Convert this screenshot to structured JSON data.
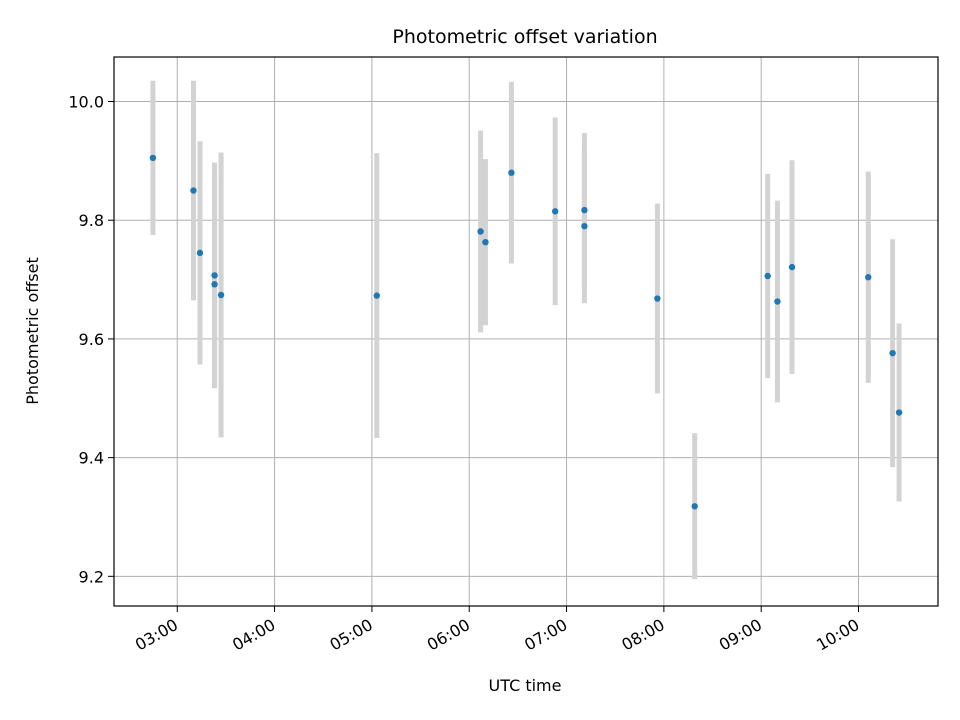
{
  "chart_data": {
    "type": "scatter",
    "title": "Photometric offset variation",
    "xlabel": "UTC time",
    "ylabel": "Photometric offset",
    "grid": true,
    "x_axis": {
      "type": "time",
      "range": [
        "02:21",
        "10:49"
      ],
      "ticks": [
        "03:00",
        "04:00",
        "05:00",
        "06:00",
        "07:00",
        "08:00",
        "09:00",
        "10:00"
      ]
    },
    "y_axis": {
      "range": [
        9.15,
        10.075
      ],
      "ticks": [
        9.2,
        9.4,
        9.6,
        9.8,
        10.0
      ],
      "tick_labels": [
        "9.2",
        "9.4",
        "9.6",
        "9.8",
        "10.0"
      ]
    },
    "colors": {
      "points": "#1f77b4",
      "error_bars": "#d3d3d3",
      "grid": "#b0b0b0"
    },
    "series": [
      {
        "points": [
          {
            "x": "02:45",
            "y": 9.905,
            "err": 0.13
          },
          {
            "x": "03:10",
            "y": 9.85,
            "err": 0.185
          },
          {
            "x": "03:14",
            "y": 9.745,
            "err": 0.188
          },
          {
            "x": "03:23",
            "y": 9.707,
            "err": 0.19
          },
          {
            "x": "03:23",
            "y": 9.692,
            "err": 0.175
          },
          {
            "x": "03:27",
            "y": 9.674,
            "err": 0.24
          },
          {
            "x": "05:03",
            "y": 9.673,
            "err": 0.24
          },
          {
            "x": "06:07",
            "y": 9.781,
            "err": 0.17
          },
          {
            "x": "06:10",
            "y": 9.763,
            "err": 0.14
          },
          {
            "x": "06:26",
            "y": 9.88,
            "err": 0.153
          },
          {
            "x": "06:53",
            "y": 9.815,
            "err": 0.158
          },
          {
            "x": "07:11",
            "y": 9.817,
            "err": 0.13
          },
          {
            "x": "07:11",
            "y": 9.79,
            "err": 0.13
          },
          {
            "x": "07:56",
            "y": 9.668,
            "err": 0.16
          },
          {
            "x": "08:19",
            "y": 9.318,
            "err": 0.123
          },
          {
            "x": "09:04",
            "y": 9.706,
            "err": 0.172
          },
          {
            "x": "09:10",
            "y": 9.663,
            "err": 0.17
          },
          {
            "x": "09:19",
            "y": 9.721,
            "err": 0.18
          },
          {
            "x": "10:06",
            "y": 9.704,
            "err": 0.178
          },
          {
            "x": "10:21",
            "y": 9.576,
            "err": 0.192
          },
          {
            "x": "10:25",
            "y": 9.476,
            "err": 0.15
          }
        ]
      }
    ]
  }
}
